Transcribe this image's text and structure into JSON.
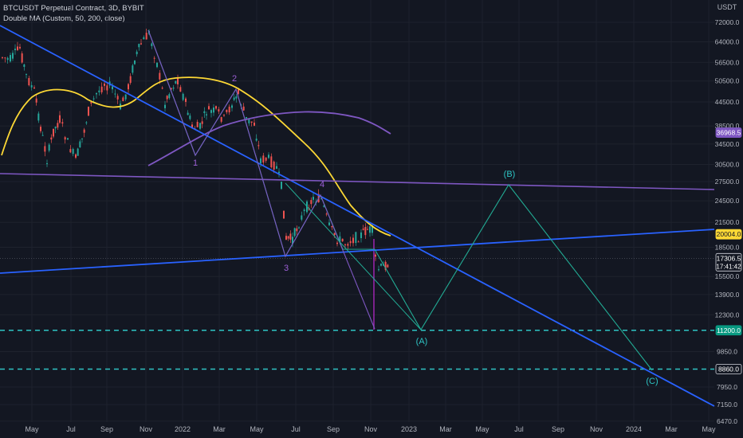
{
  "legend": {
    "title": "BTCUSDT Perpetual Contract, 3D, BYBIT",
    "indicator": "Double MA (Custom, 50, 200, close)"
  },
  "chart_data": {
    "type": "line",
    "currency_label": "USDT",
    "y_scale": "log",
    "y_ticks": [
      72000.0,
      64000.0,
      56500.0,
      50500.0,
      44500.0,
      38500.0,
      34500.0,
      30500.0,
      27500.0,
      24500.0,
      21500.0,
      18500.0,
      15500.0,
      13900.0,
      12300.0,
      9850.0,
      7950.0,
      7150.0,
      6470.0
    ],
    "y_tick_labels": [
      "72000.0",
      "64000.0",
      "56500.0",
      "50500.0",
      "44500.0",
      "38500.0",
      "34500.0",
      "30500.0",
      "27500.0",
      "24500.0",
      "21500.0",
      "18500.0",
      "15500.0",
      "13900.0",
      "12300.0",
      "9850.0",
      "7950.0",
      "7150.0",
      "6470.0"
    ],
    "x_tick_labels": [
      "May",
      "Jul",
      "Sep",
      "Nov",
      "2022",
      "Mar",
      "May",
      "Jul",
      "Sep",
      "Nov",
      "2023",
      "Mar",
      "May",
      "Jul",
      "Sep",
      "Nov",
      "2024",
      "Mar",
      "May"
    ],
    "price_badges": [
      {
        "label": "36968.5",
        "value": 36968.5,
        "color": "#7e57c2"
      },
      {
        "label": "20004.0",
        "value": 20004.0,
        "color": "#fdd835"
      },
      {
        "label": "17306.5",
        "sublabel": "17:41:42",
        "value": 17306.5,
        "color": "#131722"
      },
      {
        "label": "11200.0",
        "value": 11200.0,
        "color": "#089981"
      },
      {
        "label": "8860.0",
        "value": 8860.0,
        "color": "#131722"
      }
    ],
    "horizontal_levels": [
      11200.0,
      8860.0
    ],
    "wave_labels": {
      "primary": [
        "1",
        "2",
        "3",
        "4"
      ],
      "projection": [
        "(A)",
        "(B)",
        "(C)"
      ]
    },
    "colors": {
      "background": "#131722",
      "up_candle": "#26a69a",
      "down_candle": "#ef5350",
      "ma_fast": "#fdd835",
      "ma_slow": "#7e57c2",
      "trendline": "#2962ff",
      "projection": "#22ab94",
      "wave_label": "#9c5fd6",
      "projection_label": "#2ec4c4",
      "axis_text": "#b2b5be"
    }
  }
}
